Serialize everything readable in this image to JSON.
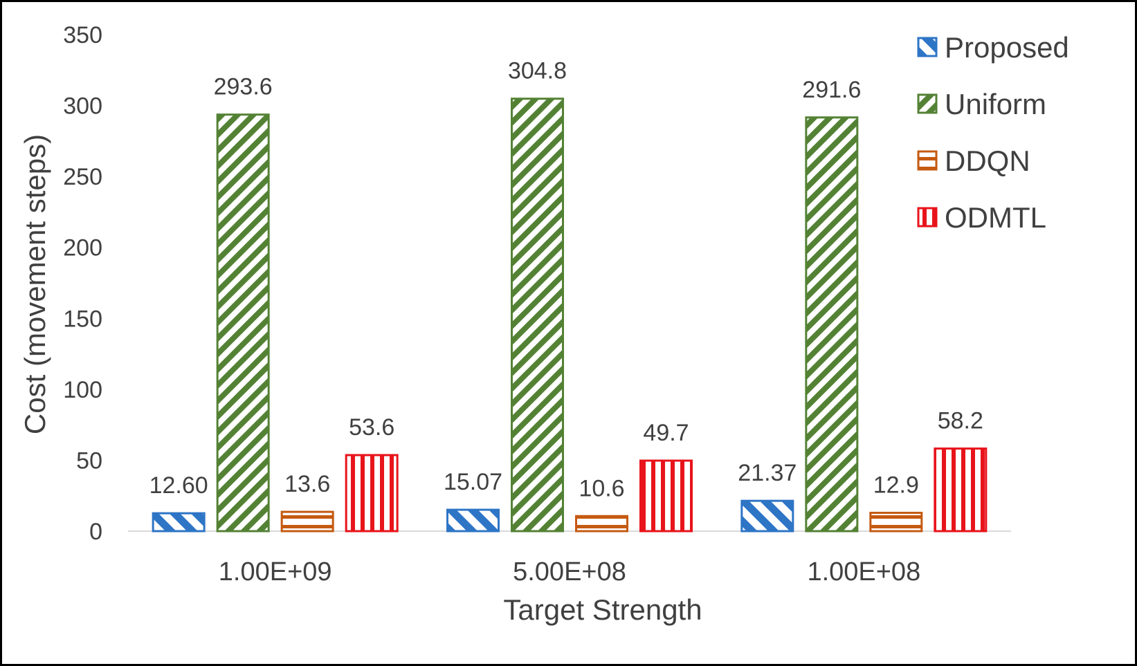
{
  "chart_data": {
    "type": "bar",
    "title": "",
    "xlabel": "Target Strength",
    "ylabel": "Cost (movement steps)",
    "ylim": [
      0,
      350
    ],
    "yticks": [
      0,
      50,
      100,
      150,
      200,
      250,
      300,
      350
    ],
    "grid": false,
    "legend_position": "top-right",
    "categories": [
      "1.00E+09",
      "5.00E+08",
      "1.00E+08"
    ],
    "series": [
      {
        "name": "Proposed",
        "pattern": "diag-down",
        "color": "#2E75C6",
        "values": [
          12.6,
          15.07,
          21.37
        ],
        "labels": [
          "12.60",
          "15.07",
          "21.37"
        ]
      },
      {
        "name": "Uniform",
        "pattern": "diag-up",
        "color": "#548235",
        "values": [
          293.6,
          304.8,
          291.6
        ],
        "labels": [
          "293.6",
          "304.8",
          "291.6"
        ]
      },
      {
        "name": "DDQN",
        "pattern": "horizontal",
        "color": "#C55A11",
        "values": [
          13.6,
          10.6,
          12.9
        ],
        "labels": [
          "13.6",
          "10.6",
          "12.9"
        ]
      },
      {
        "name": "ODMTL",
        "pattern": "vertical",
        "color": "#E8141B",
        "values": [
          53.6,
          49.7,
          58.2
        ],
        "labels": [
          "53.6",
          "49.7",
          "58.2"
        ]
      }
    ]
  }
}
